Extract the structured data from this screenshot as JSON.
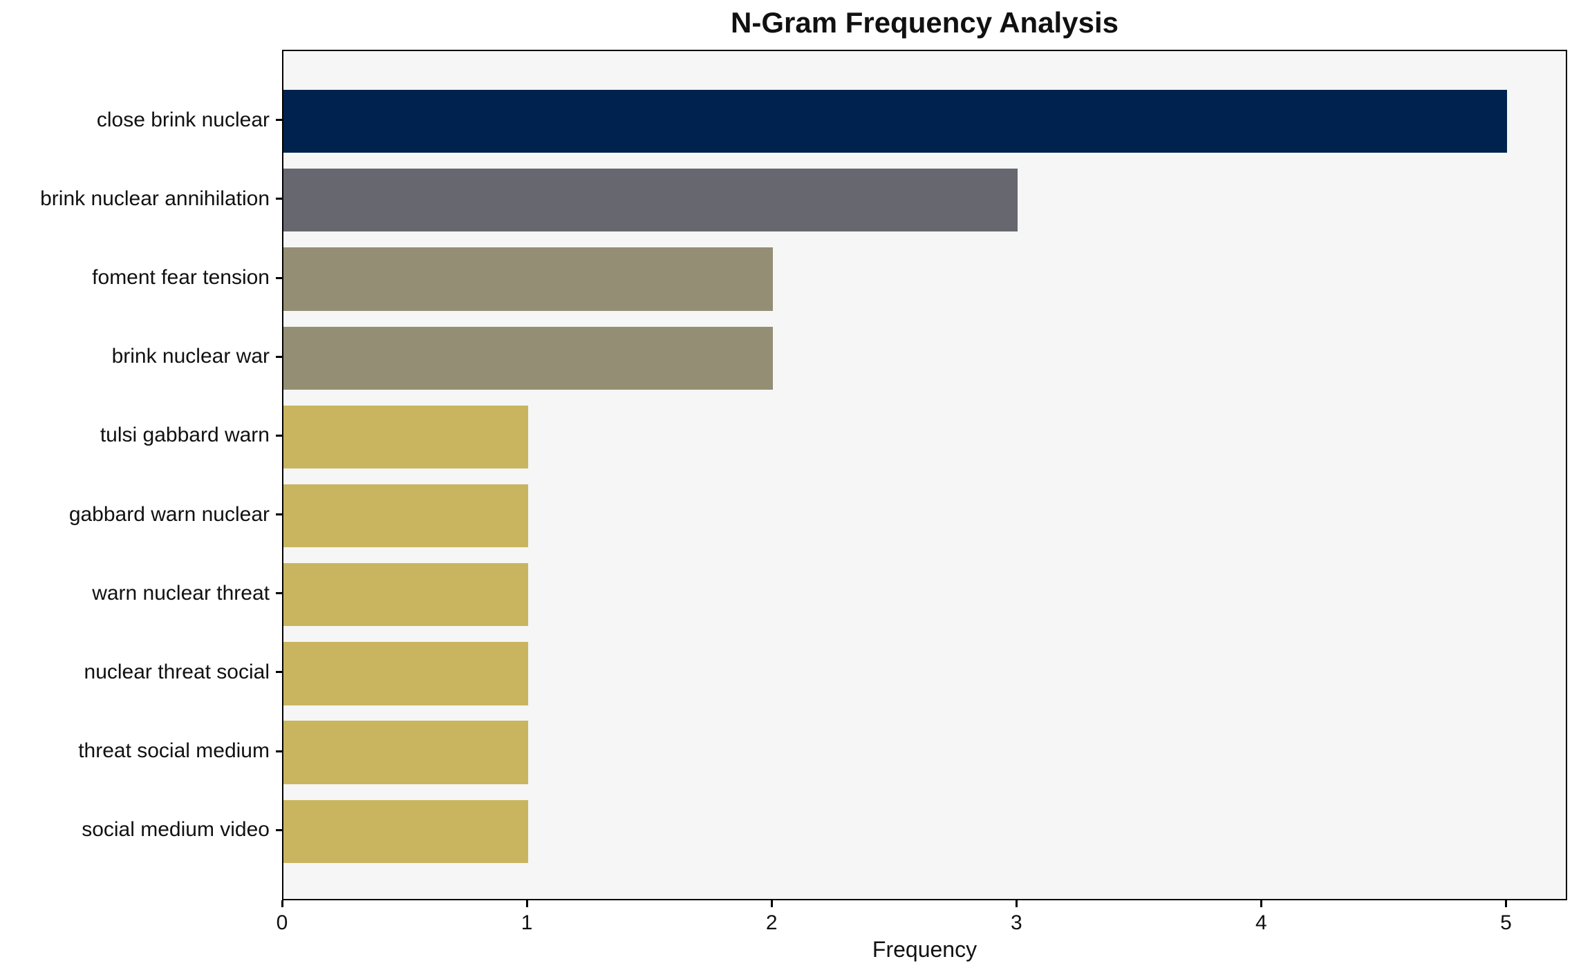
{
  "chart_data": {
    "type": "bar",
    "orientation": "horizontal",
    "title": "N-Gram Frequency Analysis",
    "xlabel": "Frequency",
    "ylabel": "",
    "categories": [
      "close brink nuclear",
      "brink nuclear annihilation",
      "foment fear tension",
      "brink nuclear war",
      "tulsi gabbard warn",
      "gabbard warn nuclear",
      "warn nuclear threat",
      "nuclear threat social",
      "threat social medium",
      "social medium video"
    ],
    "values": [
      5,
      3,
      2,
      2,
      1,
      1,
      1,
      1,
      1,
      1
    ],
    "bar_colors": [
      "#00224e",
      "#66676f",
      "#948e74",
      "#948e74",
      "#c9b55f",
      "#c9b55f",
      "#c9b55f",
      "#c9b55f",
      "#c9b55f",
      "#c9b55f"
    ],
    "xlim": [
      0,
      5.25
    ],
    "x_ticks": [
      "0",
      "1",
      "2",
      "3",
      "4",
      "5"
    ],
    "grid": false,
    "legend": null,
    "colors": {
      "plot_background": "#f5f6f5",
      "figure_background": "#ffffff",
      "spine": "#000000",
      "text": "#111111"
    }
  }
}
